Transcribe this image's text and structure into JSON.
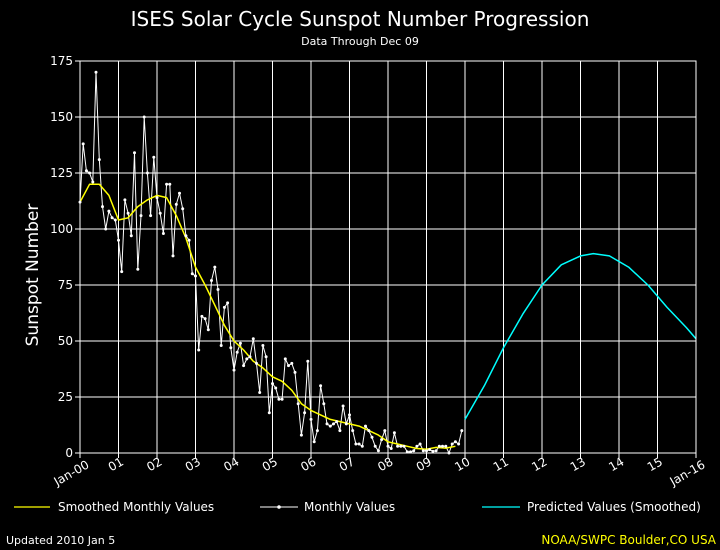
{
  "chart_data": {
    "type": "line",
    "title": "ISES Solar Cycle Sunspot Number Progression",
    "subtitle": "Data Through Dec 09",
    "xlabel": "",
    "ylabel": "Sunspot Number",
    "ylim": [
      0,
      175
    ],
    "yticks": [
      0,
      25,
      50,
      75,
      100,
      125,
      150,
      175
    ],
    "xlim": [
      "2000-01",
      "2016-01"
    ],
    "xtick_labels": [
      "Jan-00",
      "01",
      "02",
      "03",
      "04",
      "05",
      "06",
      "07",
      "08",
      "09",
      "10",
      "11",
      "12",
      "13",
      "14",
      "15",
      "Jan-16"
    ],
    "grid": true,
    "legend_position": "bottom",
    "series": [
      {
        "name": "Smoothed Monthly Values",
        "color": "#ffff00",
        "x": [
          "2000-01",
          "2000-04",
          "2000-07",
          "2000-10",
          "2001-01",
          "2001-04",
          "2001-07",
          "2001-10",
          "2002-01",
          "2002-04",
          "2002-07",
          "2002-10",
          "2003-01",
          "2003-04",
          "2003-07",
          "2003-10",
          "2004-01",
          "2004-04",
          "2004-07",
          "2004-10",
          "2005-01",
          "2005-04",
          "2005-07",
          "2005-10",
          "2006-01",
          "2006-04",
          "2006-07",
          "2006-10",
          "2007-01",
          "2007-04",
          "2007-07",
          "2007-10",
          "2008-01",
          "2008-04",
          "2008-07",
          "2008-10",
          "2009-01",
          "2009-04",
          "2009-07",
          "2009-10"
        ],
        "values": [
          112,
          120,
          120,
          115,
          104,
          105,
          110,
          113,
          115,
          114,
          106,
          96,
          83,
          75,
          66,
          57,
          50,
          46,
          41,
          38,
          34,
          32,
          28,
          22,
          19,
          17,
          15,
          14,
          13,
          12,
          10,
          8,
          5,
          4,
          3,
          2,
          1.7,
          2.5,
          2.2,
          3
        ]
      },
      {
        "name": "Monthly Values",
        "color": "#ffffff",
        "x": [
          "2000-01",
          "2000-02",
          "2000-03",
          "2000-04",
          "2000-05",
          "2000-06",
          "2000-07",
          "2000-08",
          "2000-09",
          "2000-10",
          "2000-11",
          "2000-12",
          "2001-01",
          "2001-02",
          "2001-03",
          "2001-04",
          "2001-05",
          "2001-06",
          "2001-07",
          "2001-08",
          "2001-09",
          "2001-10",
          "2001-11",
          "2001-12",
          "2002-01",
          "2002-02",
          "2002-03",
          "2002-04",
          "2002-05",
          "2002-06",
          "2002-07",
          "2002-08",
          "2002-09",
          "2002-10",
          "2002-11",
          "2002-12",
          "2003-01",
          "2003-02",
          "2003-03",
          "2003-04",
          "2003-05",
          "2003-06",
          "2003-07",
          "2003-08",
          "2003-09",
          "2003-10",
          "2003-11",
          "2003-12",
          "2004-01",
          "2004-02",
          "2004-03",
          "2004-04",
          "2004-05",
          "2004-06",
          "2004-07",
          "2004-08",
          "2004-09",
          "2004-10",
          "2004-11",
          "2004-12",
          "2005-01",
          "2005-02",
          "2005-03",
          "2005-04",
          "2005-05",
          "2005-06",
          "2005-07",
          "2005-08",
          "2005-09",
          "2005-10",
          "2005-11",
          "2005-12",
          "2006-01",
          "2006-02",
          "2006-03",
          "2006-04",
          "2006-05",
          "2006-06",
          "2006-07",
          "2006-08",
          "2006-09",
          "2006-10",
          "2006-11",
          "2006-12",
          "2007-01",
          "2007-02",
          "2007-03",
          "2007-04",
          "2007-05",
          "2007-06",
          "2007-07",
          "2007-08",
          "2007-09",
          "2007-10",
          "2007-11",
          "2007-12",
          "2008-01",
          "2008-02",
          "2008-03",
          "2008-04",
          "2008-05",
          "2008-06",
          "2008-07",
          "2008-08",
          "2008-09",
          "2008-10",
          "2008-11",
          "2008-12",
          "2009-01",
          "2009-02",
          "2009-03",
          "2009-04",
          "2009-05",
          "2009-06",
          "2009-07",
          "2009-08",
          "2009-09",
          "2009-10",
          "2009-11",
          "2009-12"
        ],
        "values": [
          112,
          138,
          126,
          125,
          121,
          170,
          131,
          110,
          100,
          108,
          105,
          104,
          95,
          81,
          113,
          107,
          97,
          134,
          82,
          106,
          150,
          125,
          106,
          132,
          114,
          107,
          98,
          120,
          120,
          88,
          111,
          116,
          109,
          97,
          95,
          80,
          79,
          46,
          61,
          60,
          55,
          77,
          83,
          73,
          48,
          65,
          67,
          47,
          37,
          45,
          49,
          39,
          42,
          43,
          51,
          40,
          27,
          48,
          43,
          18,
          31,
          29,
          24,
          24,
          42,
          39,
          40,
          36,
          22,
          8,
          18,
          41,
          15,
          5,
          10,
          30,
          22,
          13,
          12,
          13,
          14,
          10,
          21,
          13,
          17,
          10,
          4,
          4,
          3,
          12,
          10,
          7,
          3,
          1,
          6,
          10,
          3,
          2,
          9,
          3,
          3,
          3,
          0.5,
          0.5,
          1,
          3,
          4,
          1,
          1,
          1.5,
          0.7,
          1,
          3,
          3,
          3,
          0,
          4,
          5,
          4,
          10
        ]
      },
      {
        "name": "Predicted Values (Smoothed)",
        "color": "#00ffff",
        "x": [
          "2010-01",
          "2010-07",
          "2011-01",
          "2011-07",
          "2012-01",
          "2012-07",
          "2013-01",
          "2013-05",
          "2013-10",
          "2014-04",
          "2014-10",
          "2015-04",
          "2015-10",
          "2016-01"
        ],
        "values": [
          15,
          30,
          47,
          62,
          75,
          84,
          88,
          89,
          88,
          83,
          75,
          65,
          56,
          51
        ]
      }
    ]
  },
  "footer": {
    "updated": "Updated 2010 Jan  5",
    "credit": "NOAA/SWPC Boulder,CO USA"
  }
}
